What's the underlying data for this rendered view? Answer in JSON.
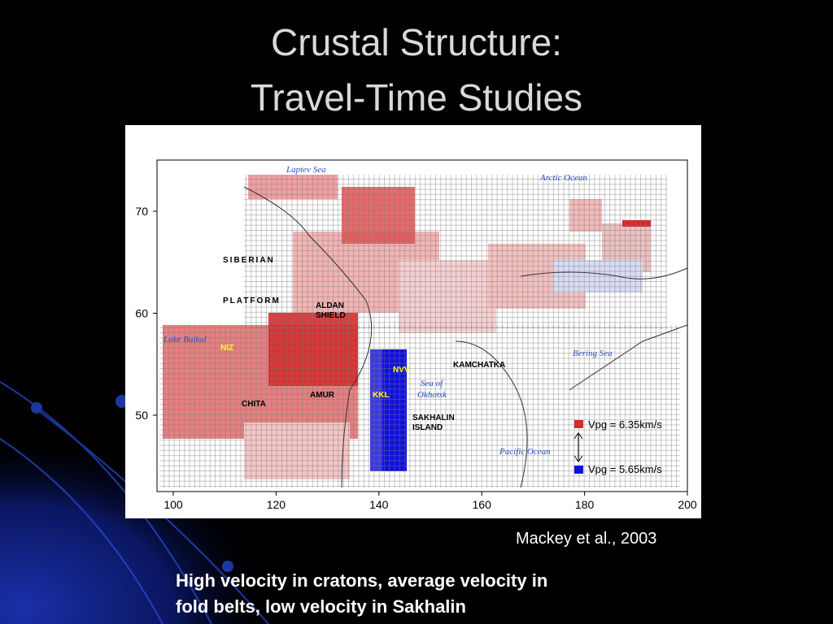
{
  "slide": {
    "title": [
      "Crustal Structure:",
      "Travel-Time Studies"
    ],
    "figure": {
      "xticks": [
        100,
        120,
        140,
        160,
        180,
        200
      ],
      "yticks": [
        50,
        60,
        70
      ],
      "labels": [
        "Laptev Sea",
        "Arctic Ocean",
        "SIBERIAN",
        "PLATFORM",
        "ALDAN",
        "SHIELD",
        "Lake Baikal",
        "NIZ",
        "CHITA",
        "AMUR",
        "NVV",
        "KKL",
        "Sea of",
        "Okhotsk",
        "SAKHALIN",
        "ISLAND",
        "KAMCHATKA",
        "Bering Sea",
        "Pacific Ocean"
      ],
      "legend": [
        "Vpg = 6.35km/s",
        "Vpg = 5.65km/s"
      ]
    },
    "citation": "Mackey et al., 2003",
    "caption": [
      "High velocity in cratons, average velocity in",
      "fold belts, low velocity in Sakhalin"
    ]
  }
}
